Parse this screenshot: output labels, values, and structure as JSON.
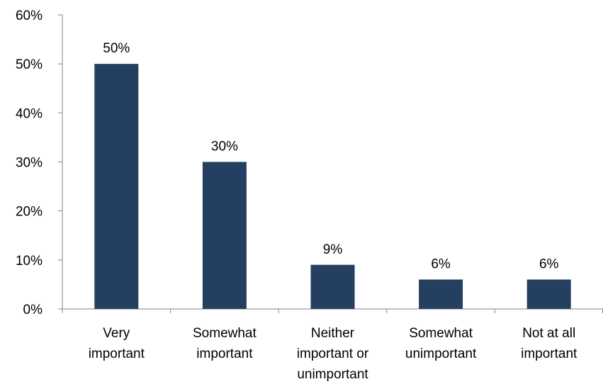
{
  "chart_data": {
    "type": "bar",
    "title": "",
    "xlabel": "",
    "ylabel": "",
    "categories": [
      [
        "Very",
        "important"
      ],
      [
        "Somewhat",
        "important"
      ],
      [
        "Neither",
        "important or",
        "unimportant"
      ],
      [
        "Somewhat",
        "unimportant"
      ],
      [
        "Not at all",
        "important"
      ]
    ],
    "values": [
      50,
      30,
      9,
      6,
      6
    ],
    "data_labels": [
      "50%",
      "30%",
      "9%",
      "6%",
      "6%"
    ],
    "ylim": [
      0,
      60
    ],
    "y_ticks": [
      0,
      10,
      20,
      30,
      40,
      50,
      60
    ],
    "y_tick_labels": [
      "0%",
      "10%",
      "20%",
      "30%",
      "40%",
      "50%",
      "60%"
    ],
    "grid": false,
    "legend": "none",
    "bar_color": "#253f61",
    "axis_color": "#868686"
  }
}
